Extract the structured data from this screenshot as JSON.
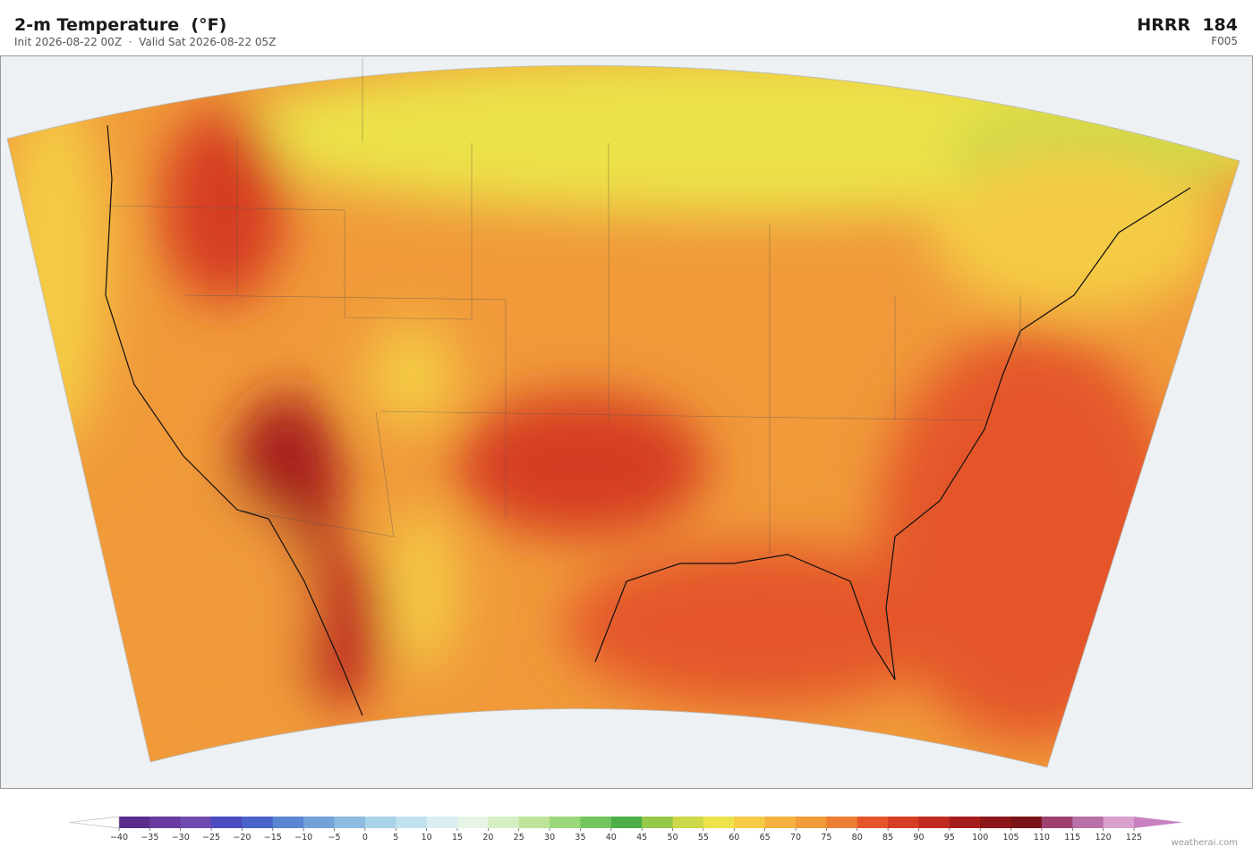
{
  "header": {
    "title": "2-m Temperature  (°F)",
    "subtitle": "Init 2026-08-22 00Z  ·  Valid Sat 2026-08-22 05Z",
    "model": "HRRR  184",
    "forecast_hour": "F005"
  },
  "colorbar": {
    "ticks": [
      {
        "value": -40,
        "label": "−40"
      },
      {
        "value": -35,
        "label": "−35"
      },
      {
        "value": -30,
        "label": "−30"
      },
      {
        "value": -25,
        "label": "−25"
      },
      {
        "value": -20,
        "label": "−20"
      },
      {
        "value": -15,
        "label": "−15"
      },
      {
        "value": -10,
        "label": "−10"
      },
      {
        "value": -5,
        "label": "−5"
      },
      0,
      5,
      10,
      15,
      20,
      25,
      30,
      35,
      40,
      45,
      50,
      55,
      60,
      65,
      70,
      75,
      80,
      85,
      90,
      95,
      100,
      105,
      110,
      115,
      120,
      125
    ],
    "colors": [
      "#5a2d8c",
      "#6a3a9e",
      "#6f4bb0",
      "#4a4bbf",
      "#4a63c8",
      "#5a85d0",
      "#72a3d8",
      "#8ebbe0",
      "#a8d2e8",
      "#c0e2ef",
      "#d8eef3",
      "#e6f5e6",
      "#d6eec4",
      "#bde49a",
      "#9ad67a",
      "#74c45e",
      "#4caf48",
      "#96c84a",
      "#cdd84a",
      "#ece24a",
      "#f5cb45",
      "#f4b040",
      "#f09a3a",
      "#ec7f33",
      "#e4562a",
      "#d63e24",
      "#c02a20",
      "#a61e1c",
      "#8c1618",
      "#7a1418",
      "#9c4070",
      "#b870a8",
      "#d8a0cc"
    ],
    "extend_colors": [
      "#ffffff",
      "#c880c0"
    ]
  },
  "credit": "weatherai.com"
}
